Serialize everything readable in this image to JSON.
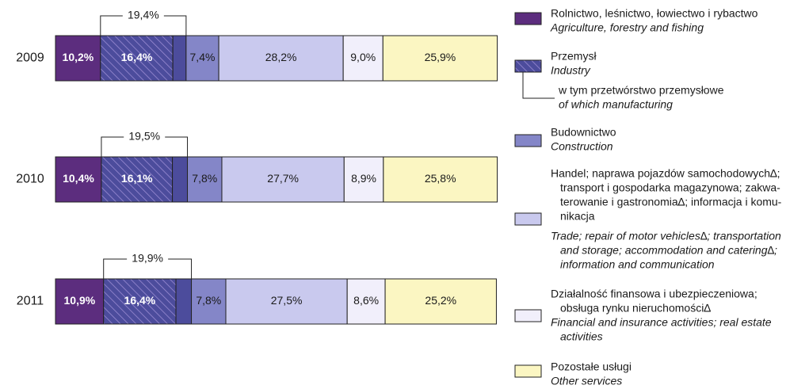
{
  "chart_data": {
    "type": "stacked_bar_horizontal",
    "categories": [
      "2009",
      "2010",
      "2011"
    ],
    "xlim": [
      0,
      100
    ],
    "series": [
      {
        "name": [
          "Rolnictwo, leśnictwo, łowiectwo i rybactwo"
        ],
        "name_en": [
          "Agriculture, forestry and fishing"
        ],
        "color": "#5c2d7e",
        "values": [
          10.2,
          10.4,
          10.9
        ],
        "value_labels": [
          "10,2%",
          "10,4%",
          "10,9%"
        ]
      },
      {
        "name": [
          "w tym przetwórstwo przemysłowe"
        ],
        "name_en": [
          "of which manufacturing"
        ],
        "color": "#4c4c9c",
        "hatch": true,
        "values": [
          16.4,
          16.1,
          16.4
        ],
        "value_labels": [
          "16,4%",
          "16,1%",
          "16,4%"
        ]
      },
      {
        "color": "#4c4c9c",
        "values": [
          3.0,
          3.4,
          3.5
        ]
      },
      {
        "name": [
          "Budownictwo"
        ],
        "name_en": [
          "Construction"
        ],
        "color": "#8486c8",
        "values": [
          7.4,
          7.8,
          7.8
        ],
        "value_labels": [
          "7,4%",
          "7,8%",
          "7,8%"
        ]
      },
      {
        "name": [
          "Handel; naprawa pojazdów samochodowych∆;",
          "transport i gospodarka magazynowa; zakwa-",
          "terowanie i gastronomia∆; informacja i komu-",
          "nikacja"
        ],
        "name_en": [
          "Trade; repair of motor vehicles∆; transportation",
          "and storage; accommodation and catering∆;",
          "information and communication"
        ],
        "color": "#c9c9ee",
        "values": [
          28.2,
          27.7,
          27.5
        ],
        "value_labels": [
          "28,2%",
          "27,7%",
          "27,5%"
        ]
      },
      {
        "name": [
          "Działalność finansowa i ubezpieczeniowa;",
          "obsługa rynku nieruchomości∆"
        ],
        "name_en": [
          "Financial and insurance activities; real estate",
          "activities"
        ],
        "color": "#f1effb",
        "values": [
          9.0,
          8.9,
          8.6
        ],
        "value_labels": [
          "9,0%",
          "8,9%",
          "8,6%"
        ]
      },
      {
        "name": [
          "Pozostałe usługi"
        ],
        "name_en": [
          "Other services"
        ],
        "color": "#fbf6c2",
        "values": [
          25.9,
          25.8,
          25.2
        ],
        "value_labels": [
          "25,9%",
          "25,8%",
          "25,2%"
        ]
      }
    ],
    "industry_total": {
      "name": [
        "Przemysł"
      ],
      "name_en": [
        "Industry"
      ],
      "values": [
        19.4,
        19.5,
        19.9
      ],
      "value_labels": [
        "19,4%",
        "19,5%",
        "19,9%"
      ]
    }
  }
}
